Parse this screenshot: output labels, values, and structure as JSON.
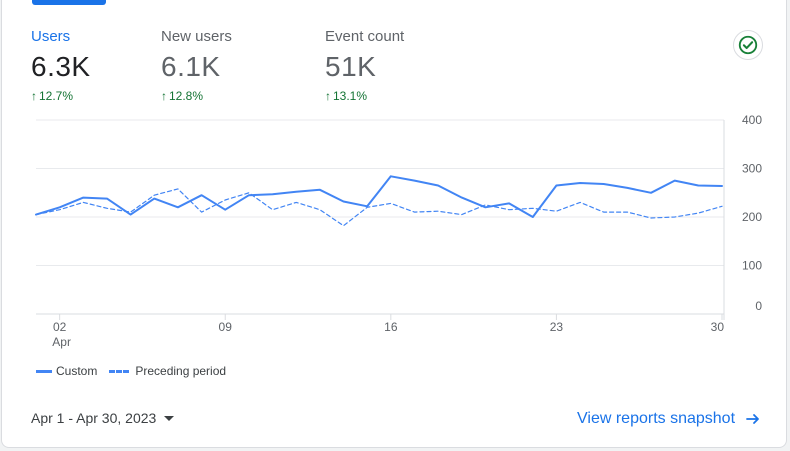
{
  "metrics": [
    {
      "label": "Users",
      "value": "6.3K",
      "change": "12.7%"
    },
    {
      "label": "New users",
      "value": "6.1K",
      "change": "12.8%"
    },
    {
      "label": "Event count",
      "value": "51K",
      "change": "13.1%"
    }
  ],
  "status_icon": "check-circle-icon",
  "legend": {
    "current": "Custom",
    "previous": "Preceding period"
  },
  "date_range": "Apr 1 - Apr 30, 2023",
  "snapshot_link": "View reports snapshot",
  "colors": {
    "accent": "#1a73e8",
    "line": "#4285f4",
    "positive": "#137333",
    "check": "#188038"
  },
  "chart_data": {
    "type": "line",
    "x": [
      "Apr 1",
      "Apr 2",
      "Apr 3",
      "Apr 4",
      "Apr 5",
      "Apr 6",
      "Apr 7",
      "Apr 8",
      "Apr 9",
      "Apr 10",
      "Apr 11",
      "Apr 12",
      "Apr 13",
      "Apr 14",
      "Apr 15",
      "Apr 16",
      "Apr 17",
      "Apr 18",
      "Apr 19",
      "Apr 20",
      "Apr 21",
      "Apr 22",
      "Apr 23",
      "Apr 24",
      "Apr 25",
      "Apr 26",
      "Apr 27",
      "Apr 28",
      "Apr 29",
      "Apr 30"
    ],
    "x_tick_labels": [
      {
        "day": 2,
        "label": "02",
        "sublabel": "Apr"
      },
      {
        "day": 9,
        "label": "09",
        "sublabel": ""
      },
      {
        "day": 16,
        "label": "16",
        "sublabel": ""
      },
      {
        "day": 23,
        "label": "23",
        "sublabel": ""
      },
      {
        "day": 30,
        "label": "30",
        "sublabel": ""
      }
    ],
    "y_ticks": [
      0,
      100,
      200,
      300,
      400
    ],
    "ylim": [
      0,
      400
    ],
    "grid": true,
    "series": [
      {
        "name": "Custom",
        "style": "solid",
        "values": [
          205,
          220,
          240,
          238,
          205,
          238,
          220,
          245,
          215,
          245,
          247,
          252,
          256,
          232,
          222,
          284,
          275,
          265,
          240,
          220,
          228,
          200,
          265,
          270,
          268,
          260,
          250,
          275,
          265,
          264
        ]
      },
      {
        "name": "Preceding period",
        "style": "dashed",
        "values": [
          205,
          215,
          230,
          218,
          210,
          245,
          258,
          210,
          235,
          250,
          215,
          230,
          215,
          182,
          220,
          228,
          210,
          212,
          205,
          225,
          215,
          218,
          212,
          230,
          210,
          210,
          198,
          200,
          208,
          222
        ]
      }
    ]
  }
}
